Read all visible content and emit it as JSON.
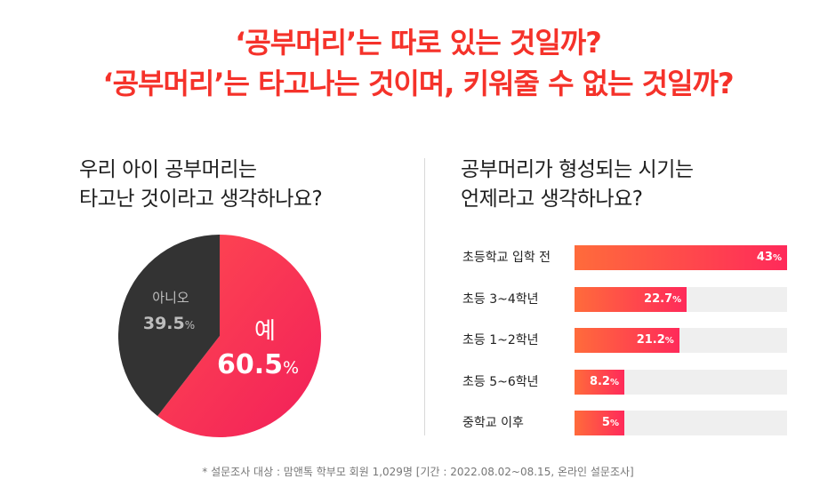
{
  "headline": {
    "line1": "‘공부머리’는 따로 있는 것일까?",
    "line2": "‘공부머리’는 타고나는 것이며, 키워줄 수 없는 것일까?"
  },
  "left_question": {
    "line1": "우리 아이 공부머리는",
    "line2": "타고난 것이라고 생각하나요?"
  },
  "right_question": {
    "line1": "공부머리가 형성되는 시기는",
    "line2": "언제라고 생각하나요?"
  },
  "footnote": "* 설문조사 대상 : 맘앤톡 학부모 회원 1,029명 [기간 : 2022.08.02~08.15, 온라인 설문조사]",
  "colors": {
    "accent": "#f5322a",
    "pie_yes": "#f7334f",
    "pie_no": "#333333",
    "bar_start": "#ff6b3b",
    "bar_end": "#ff2a5a",
    "bar_track": "#efefef"
  },
  "chart_data": [
    {
      "type": "pie",
      "slices": [
        {
          "label": "예",
          "value": 60.5,
          "display": "60.5",
          "unit": "%"
        },
        {
          "label": "아니오",
          "value": 39.5,
          "display": "39.5",
          "unit": "%"
        }
      ]
    },
    {
      "type": "bar",
      "orientation": "horizontal",
      "categories": [
        "초등학교 입학 전",
        "초등 3~4학년",
        "초등 1~2학년",
        "초등 5~6학년",
        "중학교 이후"
      ],
      "values": [
        43,
        22.7,
        21.2,
        8.2,
        5
      ],
      "labels": [
        "43",
        "22.7",
        "21.2",
        "8.2",
        "5"
      ],
      "unit": "%",
      "xlim": [
        0,
        43
      ]
    }
  ]
}
